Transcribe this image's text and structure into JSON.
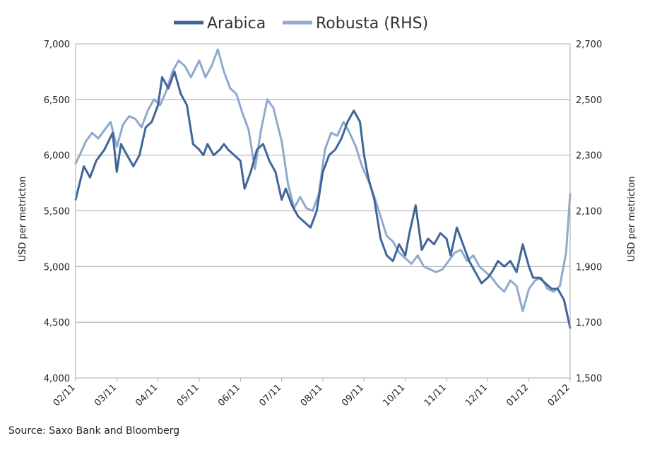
{
  "chart_data": {
    "type": "line",
    "legend_position": "top-center",
    "grid": true,
    "x_categories": [
      "02/11",
      "03/11",
      "04/11",
      "05/11",
      "06/11",
      "07/11",
      "08/11",
      "09/11",
      "10/11",
      "11/11",
      "12/11",
      "01/12",
      "02/12"
    ],
    "left_axis": {
      "label": "USD per metricton",
      "range": [
        4000,
        7000
      ],
      "ticks": [
        "4,000",
        "4,500",
        "5,000",
        "5,500",
        "6,000",
        "6,500",
        "7,000"
      ],
      "tick_values": [
        4000,
        4500,
        5000,
        5500,
        6000,
        6500,
        7000
      ]
    },
    "right_axis": {
      "label": "USD per metricton",
      "range": [
        1500,
        2700
      ],
      "ticks": [
        "1,500",
        "1,700",
        "1,900",
        "2,100",
        "2,300",
        "2,500",
        "2,700"
      ],
      "tick_values": [
        1500,
        1700,
        1900,
        2100,
        2300,
        2500,
        2700
      ]
    },
    "series": [
      {
        "name": "Arabica",
        "axis": "left",
        "color": "#3f6599",
        "x": [
          0,
          0.1,
          0.2,
          0.35,
          0.5,
          0.7,
          0.9,
          1.0,
          1.1,
          1.25,
          1.4,
          1.55,
          1.7,
          1.85,
          2.0,
          2.1,
          2.25,
          2.4,
          2.55,
          2.7,
          2.85,
          3.0,
          3.1,
          3.2,
          3.35,
          3.5,
          3.6,
          3.7,
          3.85,
          4.0,
          4.1,
          4.25,
          4.4,
          4.55,
          4.7,
          4.85,
          5.0,
          5.1,
          5.25,
          5.4,
          5.55,
          5.7,
          5.85,
          6.0,
          6.15,
          6.3,
          6.45,
          6.6,
          6.75,
          6.9,
          7.0,
          7.1,
          7.25,
          7.4,
          7.55,
          7.7,
          7.85,
          8.0,
          8.1,
          8.25,
          8.4,
          8.55,
          8.7,
          8.85,
          9.0,
          9.1,
          9.25,
          9.4,
          9.55,
          9.7,
          9.85,
          10.0,
          10.1,
          10.25,
          10.4,
          10.55,
          10.7,
          10.85,
          11.0,
          11.1,
          11.25,
          11.4,
          11.55,
          11.7,
          11.85,
          12.0
        ],
        "values": [
          5600,
          5750,
          5900,
          5800,
          5950,
          6050,
          6200,
          5850,
          6100,
          6000,
          5900,
          6000,
          6250,
          6300,
          6450,
          6700,
          6600,
          6750,
          6550,
          6450,
          6100,
          6050,
          6000,
          6100,
          6000,
          6050,
          6100,
          6050,
          6000,
          5950,
          5700,
          5850,
          6050,
          6100,
          5950,
          5850,
          5600,
          5700,
          5550,
          5450,
          5400,
          5350,
          5500,
          5850,
          6000,
          6050,
          6150,
          6300,
          6400,
          6300,
          6000,
          5800,
          5600,
          5250,
          5100,
          5050,
          5200,
          5100,
          5300,
          5550,
          5150,
          5250,
          5200,
          5300,
          5250,
          5100,
          5350,
          5200,
          5050,
          4950,
          4850,
          4900,
          4950,
          5050,
          5000,
          5050,
          4950,
          5200,
          5000,
          4900,
          4900,
          4850,
          4800,
          4800,
          4700,
          4450
        ]
      },
      {
        "name": "Robusta (RHS)",
        "axis": "right",
        "color": "#8fa9cf",
        "x": [
          0,
          0.1,
          0.25,
          0.4,
          0.55,
          0.7,
          0.85,
          1.0,
          1.15,
          1.3,
          1.45,
          1.6,
          1.75,
          1.9,
          2.05,
          2.2,
          2.35,
          2.5,
          2.65,
          2.8,
          3.0,
          3.15,
          3.3,
          3.45,
          3.6,
          3.75,
          3.9,
          4.05,
          4.2,
          4.35,
          4.5,
          4.65,
          4.8,
          5.0,
          5.15,
          5.3,
          5.45,
          5.6,
          5.75,
          5.9,
          6.05,
          6.2,
          6.35,
          6.5,
          6.65,
          6.8,
          6.95,
          7.1,
          7.25,
          7.4,
          7.55,
          7.7,
          7.85,
          8.0,
          8.15,
          8.3,
          8.45,
          8.6,
          8.75,
          8.9,
          9.05,
          9.2,
          9.35,
          9.5,
          9.65,
          9.8,
          9.95,
          10.1,
          10.25,
          10.4,
          10.55,
          10.7,
          10.85,
          11.0,
          11.15,
          11.3,
          11.45,
          11.6,
          11.75,
          11.9,
          12.0
        ],
        "values": [
          2270,
          2300,
          2350,
          2380,
          2360,
          2390,
          2420,
          2330,
          2410,
          2440,
          2430,
          2400,
          2460,
          2500,
          2480,
          2530,
          2600,
          2640,
          2620,
          2580,
          2640,
          2580,
          2620,
          2680,
          2600,
          2540,
          2520,
          2450,
          2390,
          2250,
          2390,
          2500,
          2470,
          2350,
          2200,
          2110,
          2150,
          2110,
          2100,
          2160,
          2320,
          2380,
          2370,
          2420,
          2380,
          2330,
          2260,
          2210,
          2150,
          2080,
          2010,
          1990,
          1950,
          1930,
          1910,
          1940,
          1900,
          1890,
          1880,
          1890,
          1920,
          1950,
          1960,
          1920,
          1940,
          1900,
          1880,
          1860,
          1830,
          1810,
          1850,
          1830,
          1740,
          1820,
          1850,
          1860,
          1820,
          1810,
          1830,
          1950,
          2160
        ]
      }
    ]
  },
  "legend": {
    "items": [
      {
        "label": "Arabica",
        "color": "#3f6599"
      },
      {
        "label": "Robusta (RHS)",
        "color": "#8fa9cf"
      }
    ]
  },
  "source": "Source: Saxo Bank and Bloomberg"
}
